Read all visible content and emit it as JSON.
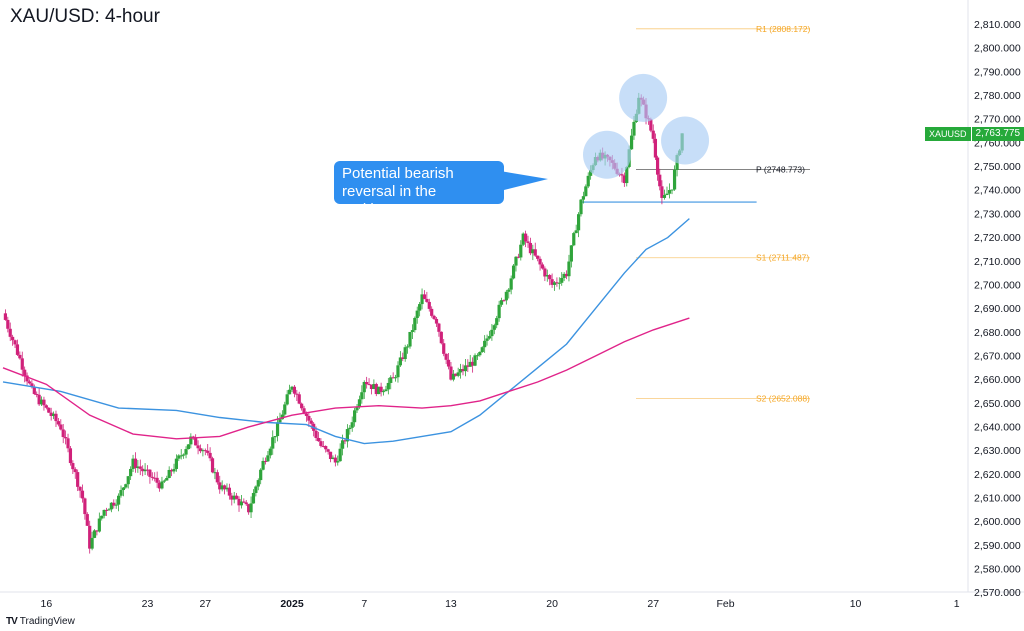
{
  "title": "XAU/USD: 4-hour",
  "brand": {
    "logo": "TV",
    "name": "TradingView"
  },
  "annotation": "Potential bearish reversal in the making?",
  "price_tag": {
    "symbol": "XAUUSD",
    "value": "2,763.775"
  },
  "colors": {
    "up": "#2fa43b",
    "down": "#d0217a",
    "ma_fast": "#3c93e0",
    "ma_slow": "#e0248a",
    "levels": "#f5a623",
    "pivot": "#777777",
    "support": "#3c93e0",
    "highlight": "#a9cdf5"
  },
  "chart_data": {
    "type": "candlestick",
    "title": "XAU/USD: 4-hour",
    "ylim": [
      2565,
      2815
    ],
    "y_ticks": [
      2570,
      2580,
      2590,
      2600,
      2610,
      2620,
      2630,
      2640,
      2650,
      2660,
      2670,
      2680,
      2690,
      2700,
      2710,
      2720,
      2730,
      2740,
      2750,
      2760,
      2770,
      2780,
      2790,
      2800,
      2810
    ],
    "y_tick_labels": [
      "2,570.000",
      "2,580.000",
      "2,590.000",
      "2,600.000",
      "2,610.000",
      "2,620.000",
      "2,630.000",
      "2,640.000",
      "2,650.000",
      "2,660.000",
      "2,670.000",
      "2,680.000",
      "2,690.000",
      "2,700.000",
      "2,710.000",
      "2,720.000",
      "2,730.000",
      "2,740.000",
      "2,750.000",
      "2,760.000",
      "2,770.000",
      "2,780.000",
      "2,790.000",
      "2,800.000",
      "2,810.000"
    ],
    "x_labels": [
      {
        "label": "16",
        "day": 16
      },
      {
        "label": "23",
        "day": 23
      },
      {
        "label": "27",
        "day": 27
      },
      {
        "label": "2025",
        "day": 33,
        "bold": true
      },
      {
        "label": "7",
        "day": 38
      },
      {
        "label": "13",
        "day": 44
      },
      {
        "label": "20",
        "day": 51
      },
      {
        "label": "27",
        "day": 58
      },
      {
        "label": "Feb",
        "day": 63
      },
      {
        "label": "10",
        "day": 72
      },
      {
        "label": "1",
        "day": 79
      }
    ],
    "key_points": [
      {
        "day": 13,
        "close": 2688
      },
      {
        "day": 15,
        "close": 2655
      },
      {
        "day": 17,
        "close": 2640
      },
      {
        "day": 18.5,
        "close": 2610
      },
      {
        "day": 19,
        "close": 2590
      },
      {
        "day": 20,
        "close": 2605
      },
      {
        "day": 21,
        "close": 2610
      },
      {
        "day": 22,
        "close": 2625
      },
      {
        "day": 24,
        "close": 2615
      },
      {
        "day": 26,
        "close": 2635
      },
      {
        "day": 27,
        "close": 2630
      },
      {
        "day": 28,
        "close": 2615
      },
      {
        "day": 30,
        "close": 2605
      },
      {
        "day": 31,
        "close": 2625
      },
      {
        "day": 32,
        "close": 2640
      },
      {
        "day": 33,
        "close": 2658
      },
      {
        "day": 34,
        "close": 2645
      },
      {
        "day": 35,
        "close": 2632
      },
      {
        "day": 36,
        "close": 2625
      },
      {
        "day": 37,
        "close": 2640
      },
      {
        "day": 38,
        "close": 2660
      },
      {
        "day": 39,
        "close": 2655
      },
      {
        "day": 40,
        "close": 2660
      },
      {
        "day": 41,
        "close": 2675
      },
      {
        "day": 42,
        "close": 2695
      },
      {
        "day": 43,
        "close": 2685
      },
      {
        "day": 44,
        "close": 2660
      },
      {
        "day": 46,
        "close": 2670
      },
      {
        "day": 48,
        "close": 2700
      },
      {
        "day": 49,
        "close": 2720
      },
      {
        "day": 50,
        "close": 2710
      },
      {
        "day": 51,
        "close": 2700
      },
      {
        "day": 52,
        "close": 2705
      },
      {
        "day": 53,
        "close": 2735
      },
      {
        "day": 54,
        "close": 2755
      },
      {
        "day": 55,
        "close": 2752
      },
      {
        "day": 56,
        "close": 2745
      },
      {
        "day": 57,
        "close": 2780
      },
      {
        "day": 57.5,
        "close": 2772
      },
      {
        "day": 58,
        "close": 2762
      },
      {
        "day": 58.6,
        "close": 2735
      },
      {
        "day": 59.3,
        "close": 2742
      },
      {
        "day": 60,
        "close": 2764
      }
    ],
    "series": [
      {
        "name": "",
        "type": "line",
        "role": "ma_fast",
        "points": [
          [
            13,
            2659
          ],
          [
            17,
            2655
          ],
          [
            21,
            2648
          ],
          [
            25,
            2647
          ],
          [
            28,
            2644
          ],
          [
            31,
            2642
          ],
          [
            34,
            2641
          ],
          [
            36,
            2636
          ],
          [
            38,
            2633
          ],
          [
            40,
            2634
          ],
          [
            42,
            2636
          ],
          [
            44,
            2638
          ],
          [
            46,
            2645
          ],
          [
            48,
            2655
          ],
          [
            50,
            2665
          ],
          [
            52,
            2675
          ],
          [
            54,
            2690
          ],
          [
            56,
            2705
          ],
          [
            57.5,
            2715
          ],
          [
            59,
            2720
          ],
          [
            60.5,
            2728
          ]
        ]
      },
      {
        "name": "",
        "type": "line",
        "role": "ma_slow",
        "points": [
          [
            13,
            2665
          ],
          [
            16,
            2658
          ],
          [
            19,
            2645
          ],
          [
            22,
            2637
          ],
          [
            25,
            2635
          ],
          [
            28,
            2636
          ],
          [
            30,
            2640
          ],
          [
            33,
            2645
          ],
          [
            36,
            2648
          ],
          [
            39,
            2649
          ],
          [
            42,
            2648
          ],
          [
            44,
            2649
          ],
          [
            46,
            2651
          ],
          [
            48,
            2655
          ],
          [
            50,
            2659
          ],
          [
            52,
            2664
          ],
          [
            54,
            2670
          ],
          [
            56,
            2676
          ],
          [
            58,
            2681
          ],
          [
            60.5,
            2686
          ]
        ]
      }
    ],
    "levels": [
      {
        "label": "R1 (2808.172)",
        "value": 2808.172,
        "kind": "resistance"
      },
      {
        "label": "P (2748.773)",
        "value": 2748.773,
        "kind": "pivot"
      },
      {
        "label": "S1 (2711.487)",
        "value": 2711.487,
        "kind": "support"
      },
      {
        "label": "S2 (2652.088)",
        "value": 2652.088,
        "kind": "support"
      }
    ],
    "neckline": {
      "value": 2735,
      "from_day": 53,
      "to_day": 61
    },
    "highlights": [
      {
        "day": 54.8,
        "value": 2755
      },
      {
        "day": 57.3,
        "value": 2779
      },
      {
        "day": 60.2,
        "value": 2761
      }
    ]
  }
}
